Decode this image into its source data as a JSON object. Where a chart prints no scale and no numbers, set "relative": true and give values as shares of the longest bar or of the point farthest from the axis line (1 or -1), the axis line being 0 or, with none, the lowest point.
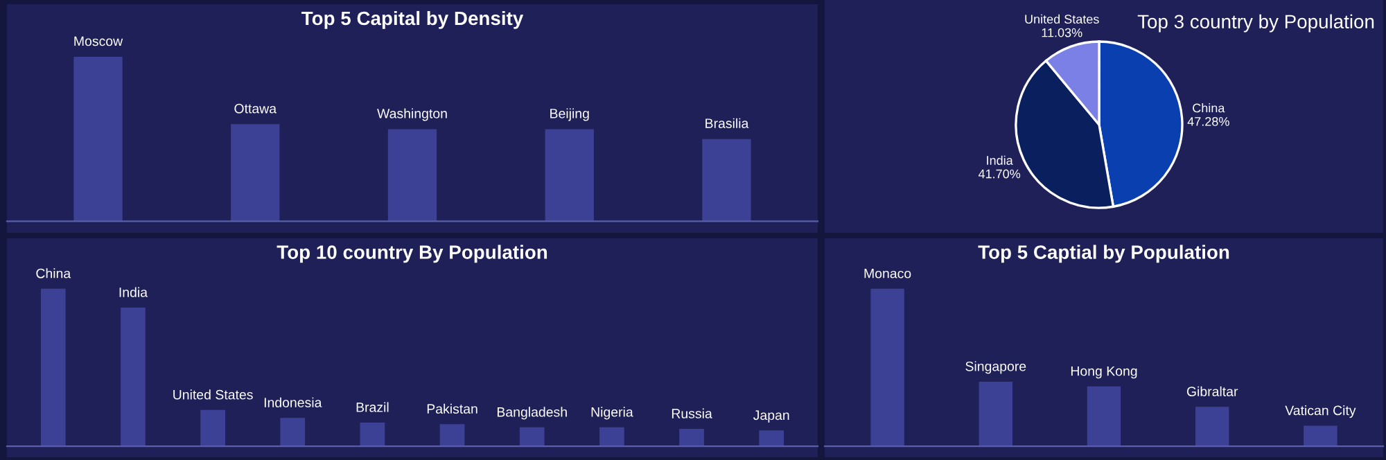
{
  "chart_data": [
    {
      "type": "bar",
      "title": "Top 5 Capital by Density",
      "relative": true,
      "color": "#3d4196",
      "categories": [
        "Moscow",
        "Ottawa",
        "Washington",
        "Beijing",
        "Brasilia"
      ],
      "values": [
        1,
        0.59,
        0.56,
        0.56,
        0.5
      ]
    },
    {
      "type": "pie",
      "title": "Top 3 country by Population",
      "categories": [
        "China",
        "India",
        "United States"
      ],
      "values": [
        47.28,
        41.7,
        11.03
      ],
      "value_labels": [
        "47.28%",
        "41.70%",
        "11.03%"
      ],
      "colors": [
        "#0a3fb0",
        "#0a1f5e",
        "#7b80e6"
      ]
    },
    {
      "type": "bar",
      "title": "Top 10 country By Population",
      "relative": true,
      "color": "#3d4196",
      "categories": [
        "China",
        "India",
        "United States",
        "Indonesia",
        "Brazil",
        "Pakistan",
        "Bangladesh",
        "Nigeria",
        "Russia",
        "Japan"
      ],
      "values": [
        1,
        0.88,
        0.23,
        0.18,
        0.15,
        0.14,
        0.12,
        0.12,
        0.11,
        0.1
      ]
    },
    {
      "type": "bar",
      "title": "Top 5 Captial by Population",
      "relative": true,
      "color": "#3d4196",
      "categories": [
        "Monaco",
        "Singapore",
        "Hong Kong",
        "Gibraltar",
        "Vatican City"
      ],
      "values": [
        1,
        0.41,
        0.38,
        0.25,
        0.13
      ]
    }
  ]
}
